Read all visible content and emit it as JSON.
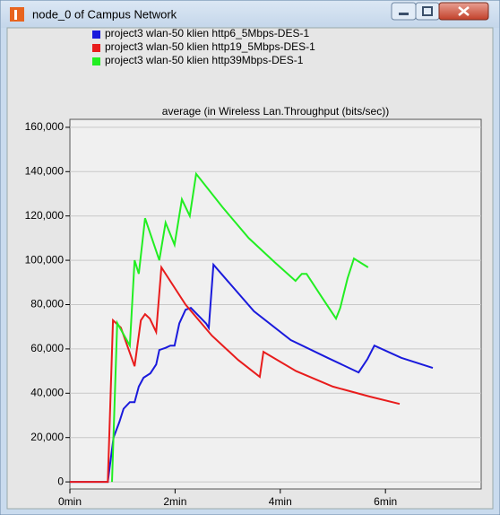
{
  "window_title": "node_0 of Campus Network",
  "chart_data": {
    "type": "line",
    "title": "average (in Wireless Lan.Throughput (bits/sec))",
    "xlim": [
      0,
      7.82
    ],
    "ylim": [
      -3200,
      163600
    ],
    "xticks": [
      {
        "value": 0,
        "label": "0min"
      },
      {
        "value": 2,
        "label": "2min"
      },
      {
        "value": 4,
        "label": "4min"
      },
      {
        "value": 6,
        "label": "6min"
      }
    ],
    "yticks": [
      0,
      {
        "value": 20000,
        "label": "20,000"
      },
      {
        "value": 40000,
        "label": "40,000"
      },
      {
        "value": 60000,
        "label": "60,000"
      },
      {
        "value": 80000,
        "label": "80,000"
      },
      {
        "value": 100000,
        "label": "100,000"
      },
      {
        "value": 120000,
        "label": "120,000"
      },
      {
        "value": 140000,
        "label": "140,000"
      },
      {
        "value": 160000,
        "label": "160,000"
      }
    ],
    "grid": true,
    "series": [
      {
        "name": "project3 wlan-50 klien http6_5Mbps-DES-1",
        "color": "#1a1adc",
        "x": [
          0,
          0.72,
          0.83,
          0.94,
          1.02,
          1.14,
          1.23,
          1.31,
          1.4,
          1.53,
          1.64,
          1.7,
          1.82,
          1.91,
          1.99,
          2.08,
          2.2,
          2.3,
          2.59,
          2.64,
          2.73,
          3.5,
          4.2,
          4.9,
          5.49,
          5.66,
          5.79,
          6.3,
          6.9
        ],
        "values": [
          0,
          0,
          20000,
          27000,
          33000,
          36000,
          36000,
          43000,
          47000,
          49000,
          53000,
          59500,
          60500,
          61500,
          61500,
          71500,
          77700,
          78500,
          71500,
          69500,
          98000,
          77000,
          64000,
          56000,
          49400,
          55500,
          61500,
          56000,
          51400
        ]
      },
      {
        "name": "project3 wlan-50 klien http19_5Mbps-DES-1",
        "color": "#e81c1c",
        "x": [
          0,
          0.72,
          0.82,
          0.97,
          1.23,
          1.35,
          1.43,
          1.52,
          1.64,
          1.74,
          2.2,
          2.7,
          3.2,
          3.61,
          3.68,
          4.3,
          5.0,
          5.7,
          6.27
        ],
        "values": [
          0,
          0,
          72900,
          69600,
          52200,
          72900,
          75700,
          73700,
          67600,
          96800,
          80000,
          66000,
          55000,
          47400,
          58700,
          50000,
          43000,
          38500,
          35200
        ]
      },
      {
        "name": "project3 wlan-50 klien http39Mbps-DES-1",
        "color": "#22ee22",
        "x": [
          0.8,
          0.9,
          1.14,
          1.23,
          1.31,
          1.43,
          1.7,
          1.82,
          1.99,
          2.13,
          2.28,
          2.4,
          2.9,
          3.4,
          3.9,
          4.29,
          4.41,
          4.5,
          4.8,
          5.06,
          5.14,
          5.28,
          5.4,
          5.67
        ],
        "values": [
          0,
          71700,
          61500,
          100000,
          93900,
          119000,
          100000,
          117000,
          107000,
          127500,
          120000,
          139000,
          124000,
          110000,
          99000,
          90700,
          93900,
          93900,
          83000,
          73700,
          78500,
          91900,
          100800,
          96800
        ]
      }
    ]
  }
}
